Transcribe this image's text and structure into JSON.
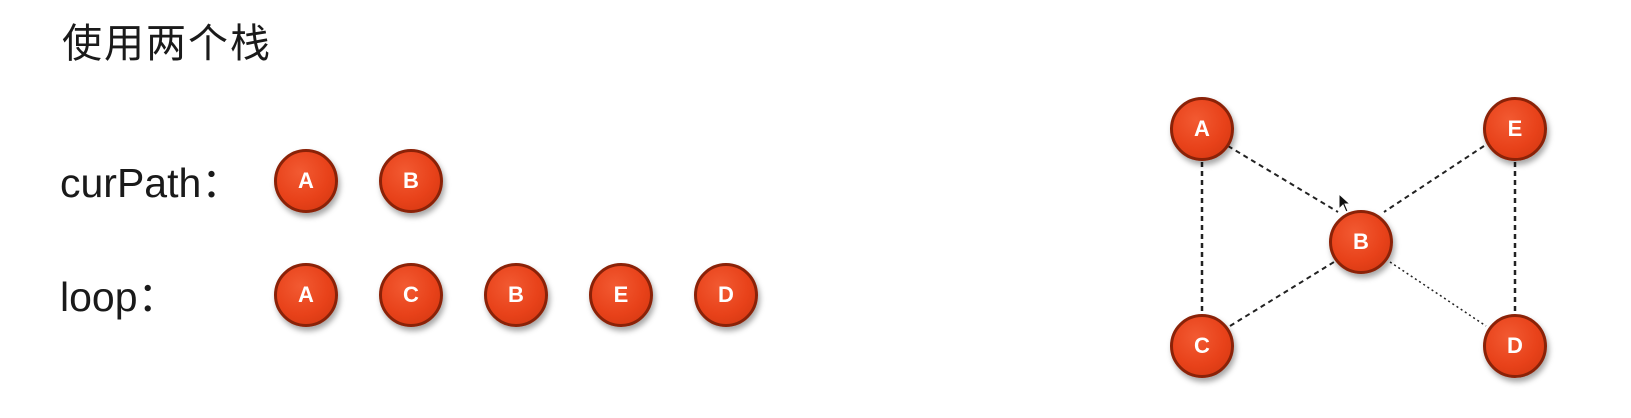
{
  "title": "使用两个栈",
  "cur_path": {
    "label": "curPath：",
    "nodes": [
      "A",
      "B"
    ]
  },
  "loop": {
    "label": "loop：",
    "nodes": [
      "A",
      "C",
      "B",
      "E",
      "D"
    ]
  },
  "graph": {
    "nodes": [
      "A",
      "E",
      "B",
      "C",
      "D"
    ],
    "edges": [
      [
        "A",
        "B"
      ],
      [
        "A",
        "C"
      ],
      [
        "E",
        "B"
      ],
      [
        "E",
        "D"
      ],
      [
        "C",
        "B"
      ],
      [
        "B",
        "D"
      ]
    ]
  },
  "colors": {
    "node_fill": "#e8421a",
    "node_border": "#8a2208",
    "node_text": "#ffffff",
    "edge": "#222222"
  }
}
